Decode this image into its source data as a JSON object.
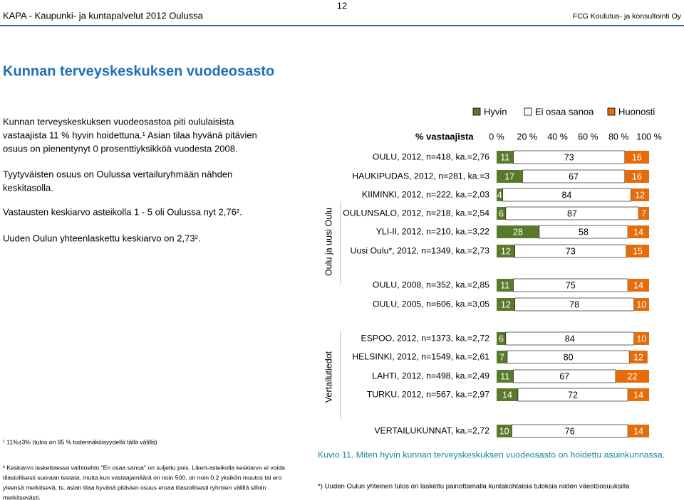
{
  "header": {
    "left": "KAPA - Kaupunki- ja kuntapalvelut 2012 Oulussa",
    "page": "12",
    "right": "FCG Koulutus- ja konsultointi Oy"
  },
  "title": "Kunnan terveyskeskuksen vuodeosasto",
  "body": [
    [
      "Kunnan terveyskeskuksen vuodeosastoa piti oululaisista",
      "vastaajista 11 % hyvin hoidettuna.¹ Asian tilaa hyvänä pitävien",
      "osuus on pienentynyt 0 prosenttiyksikköä vuodesta 2008."
    ],
    [
      "Tyytyväisten osuus on Oulussa vertailuryhmään nähden",
      "keskitasolla."
    ],
    [
      "Vastausten keskiarvo asteikolla 1 - 5 oli Oulussa nyt 2,76²."
    ],
    [
      "Uuden Oulun yhteenlaskettu keskiarvo on 2,73²."
    ]
  ],
  "footnotes": [
    [
      "¹ 11%±3% (tulos on 95 % todennäköisyydellä tällä välillä)"
    ],
    [
      "² Keskiarvo laskettaessa vaihtoehto \"En osaa sanoa\" on suljettu pois. Likert-asteikolla keskiarvo ei voida",
      "tilastollisesti suoraan testata, mutta kun vastaajamäärä on noin 500, on noin 0,2 yksikön muutos tai ero",
      "yleensä merkitsevä, ts. asian tilaa hyvänä pitävien osuus eroaa  tilastollisesti ryhmien välillä silloin",
      "merkitsevästi."
    ]
  ],
  "chart_data": {
    "type": "stacked-bar",
    "orientation": "horizontal",
    "xlabel": "% vastaajista",
    "groups": [
      "Oulu ja uusi Oulu",
      "Vertailutiedot"
    ],
    "categories": [
      "OULU, 2012, n=418, ka.=2,76",
      "HAUKIPUDAS, 2012, n=281, ka.=3",
      "KIIMINKI, 2012, n=222, ka.=2,03",
      "OULUNSALO, 2012, n=218, ka.=2,54",
      "YLI-II, 2012, n=210, ka.=3,22",
      "Uusi Oulu*, 2012, n=1349, ka.=2,73",
      "OULU, 2008, n=352, ka.=2,85",
      "OULU, 2005, n=606, ka.=3,05",
      "ESPOO, 2012, n=1373, ka.=2,72",
      "HELSINKI, 2012, n=1549, ka.=2,61",
      "LAHTI, 2012, n=498, ka.=2,49",
      "TURKU, 2012, n=567, ka.=2,97",
      "VERTAILUKUNNAT, ka.=2,72"
    ],
    "series": [
      {
        "name": "Hyvin",
        "color": "#5a7a2b",
        "label_color": "#ffffff",
        "values": [
          11,
          17,
          4,
          6,
          28,
          12,
          11,
          12,
          6,
          7,
          11,
          14,
          10
        ]
      },
      {
        "name": "Ei osaa sanoa",
        "color": "#ffffff",
        "label_color": "#000000",
        "values": [
          73,
          67,
          84,
          87,
          58,
          73,
          75,
          78,
          84,
          80,
          67,
          72,
          76
        ]
      },
      {
        "name": "Huonosti",
        "color": "#e46c0a",
        "label_color": "#ffffff",
        "values": [
          16,
          16,
          12,
          7,
          14,
          15,
          14,
          10,
          10,
          12,
          22,
          14,
          14
        ]
      }
    ],
    "xlim": [
      0,
      100
    ],
    "xticks": [
      {
        "value": 0,
        "label": "0 %"
      },
      {
        "value": 20,
        "label": "20 %"
      },
      {
        "value": 40,
        "label": "40 %"
      },
      {
        "value": 60,
        "label": "60 %"
      },
      {
        "value": 80,
        "label": "80 %"
      },
      {
        "value": 100,
        "label": "100 %"
      }
    ],
    "caption": "Kuvio 11. Miten hyvin kunnan terveyskeskuksen vuodeosasto on hoidettu asuinkunnassa.",
    "note": "*) Uuden Oulun yhteinen tulos on laskettu painottamalla kuntakohtaisia tuloksia niiden väestöosuuksilla"
  }
}
